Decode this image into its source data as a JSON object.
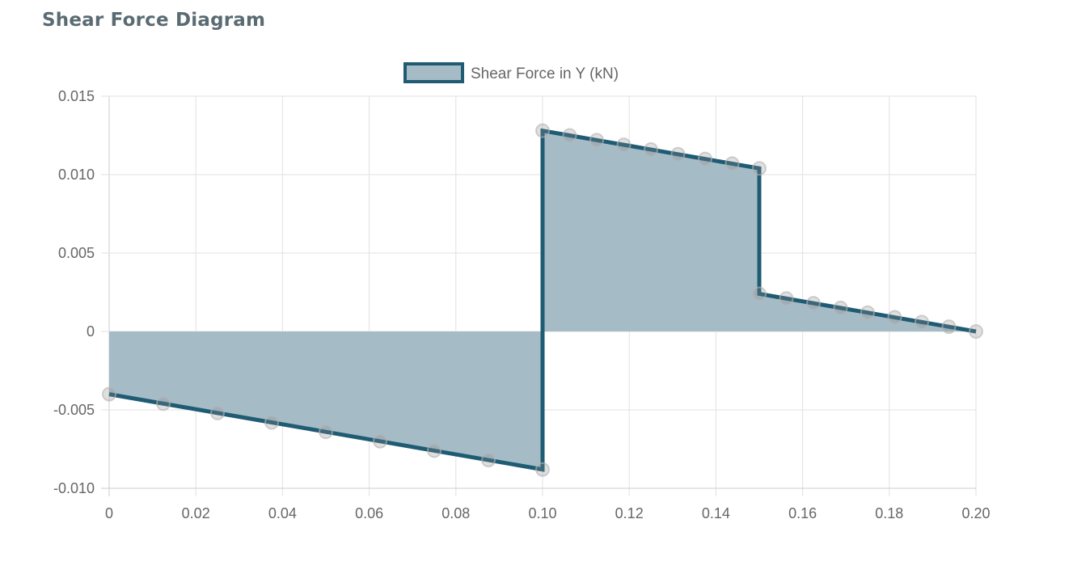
{
  "page": {
    "title": "Shear Force Diagram"
  },
  "chart_data": {
    "type": "area",
    "title": "",
    "xlabel": "",
    "ylabel": "",
    "xlim": [
      0,
      0.2
    ],
    "ylim": [
      -0.01,
      0.015
    ],
    "grid": true,
    "legend_position": "top",
    "x_ticks": [
      "0",
      "0.02",
      "0.04",
      "0.06",
      "0.08",
      "0.10",
      "0.12",
      "0.14",
      "0.16",
      "0.18",
      "0.20"
    ],
    "y_ticks": [
      "-0.010",
      "-0.005",
      "0",
      "0.005",
      "0.010",
      "0.015"
    ],
    "series": [
      {
        "name": "Shear Force in Y (kN)",
        "color": "#1f5b73",
        "fill": "#a5bcc7",
        "x": [
          0,
          0.0125,
          0.025,
          0.0375,
          0.05,
          0.0625,
          0.075,
          0.0875,
          0.1,
          0.1,
          0.10625,
          0.1125,
          0.11875,
          0.125,
          0.13125,
          0.1375,
          0.14375,
          0.15,
          0.15,
          0.15625,
          0.1625,
          0.16875,
          0.175,
          0.18125,
          0.1875,
          0.19375,
          0.2
        ],
        "y": [
          -0.004,
          -0.0046,
          -0.0052,
          -0.0058,
          -0.0064,
          -0.007,
          -0.0076,
          -0.0082,
          -0.0088,
          0.0128,
          0.0125,
          0.0122,
          0.0119,
          0.0116,
          0.0113,
          0.011,
          0.0107,
          0.0104,
          0.0024,
          0.0021,
          0.0018,
          0.0015,
          0.0012,
          0.0009,
          0.0006,
          0.0003,
          0.0
        ]
      }
    ]
  }
}
